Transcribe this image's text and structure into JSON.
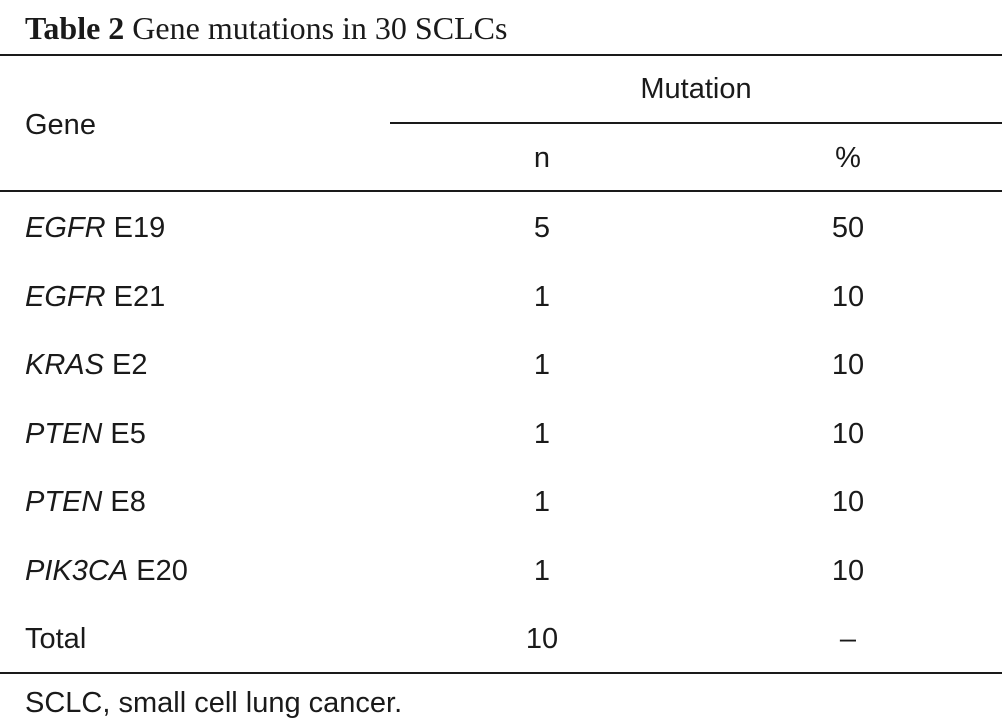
{
  "caption": {
    "label": "Table 2",
    "text": "Gene mutations in 30 SCLCs"
  },
  "header": {
    "gene": "Gene",
    "mutation": "Mutation",
    "n": "n",
    "percent": "%"
  },
  "rows": [
    {
      "symbol": "EGFR",
      "exon": "E19",
      "n": "5",
      "percent": "50"
    },
    {
      "symbol": "EGFR",
      "exon": "E21",
      "n": "1",
      "percent": "10"
    },
    {
      "symbol": "KRAS",
      "exon": "E2",
      "n": "1",
      "percent": "10"
    },
    {
      "symbol": "PTEN",
      "exon": "E5",
      "n": "1",
      "percent": "10"
    },
    {
      "symbol": "PTEN",
      "exon": "E8",
      "n": "1",
      "percent": "10"
    },
    {
      "symbol": "PIK3CA",
      "exon": "E20",
      "n": "1",
      "percent": "10"
    }
  ],
  "total": {
    "label": "Total",
    "n": "10",
    "percent": "–"
  },
  "footnote": "SCLC, small cell lung cancer."
}
